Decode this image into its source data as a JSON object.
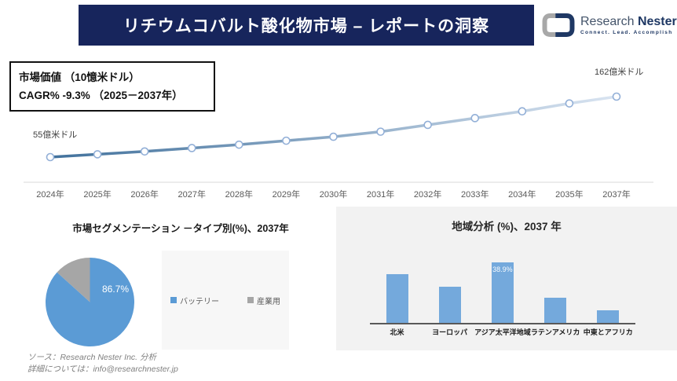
{
  "header": {
    "title": "リチウムコバルト酸化物市場 – レポートの洞察"
  },
  "logo": {
    "name_part1": "Research",
    "name_part2": "Nester",
    "tagline": "Connect. Lead. Accomplish",
    "mark_gray": "#a8a8a8",
    "mark_navy": "#1f3864"
  },
  "info_box": {
    "line1": "市場価値 （10憶米ドル）",
    "line2": "CAGR% -9.3% （2025－2037年）"
  },
  "footer": {
    "source": "ソース：Research Nester Inc. 分析",
    "contact": "詳細については：info@researchnester.jp"
  },
  "colors": {
    "banner_navy": "#17255c",
    "line_gradient_start": "#41719c",
    "line_gradient_end": "#d9e4f1",
    "axis_gray": "#d9d9d9",
    "panel_gray": "#f2f2f2"
  },
  "chart_data": [
    {
      "type": "line",
      "title": "市場価値 （10憶米ドル）",
      "x": [
        "2024年",
        "2025年",
        "2026年",
        "2027年",
        "2028年",
        "2029年",
        "2030年",
        "2031年",
        "2032年",
        "2033年",
        "2034年",
        "2035年",
        "2037年"
      ],
      "values": [
        55,
        60,
        65,
        71,
        77,
        84,
        91,
        100,
        112,
        124,
        136,
        150,
        162
      ],
      "start_label": "55億米ドル",
      "end_label": "162億米ドル",
      "ylim": [
        40,
        180
      ],
      "grid": false,
      "marker": "open-circle"
    },
    {
      "type": "pie",
      "title": "市場セグメンテーション －タイプ別(%)、2037年",
      "labels": [
        "バッテリー",
        "産業用"
      ],
      "values": [
        86.7,
        13.3
      ],
      "colors": [
        "#5b9bd5",
        "#a6a6a6"
      ],
      "data_labels": [
        "86.7%",
        ""
      ],
      "legend_position": "right"
    },
    {
      "type": "bar",
      "title": "地域分析 (%)、2037 年",
      "categories": [
        "北米",
        "ヨーロッパ",
        "アジア太平洋地域",
        "ラテンアメリカ",
        "中東とアフリカ"
      ],
      "values": [
        31.2,
        23.3,
        38.9,
        16.0,
        8.2
      ],
      "data_labels": [
        "",
        "",
        "38.9%",
        "",
        ""
      ],
      "bar_color": "#74a9dc",
      "ylim": [
        0,
        45
      ],
      "grid": false
    }
  ]
}
